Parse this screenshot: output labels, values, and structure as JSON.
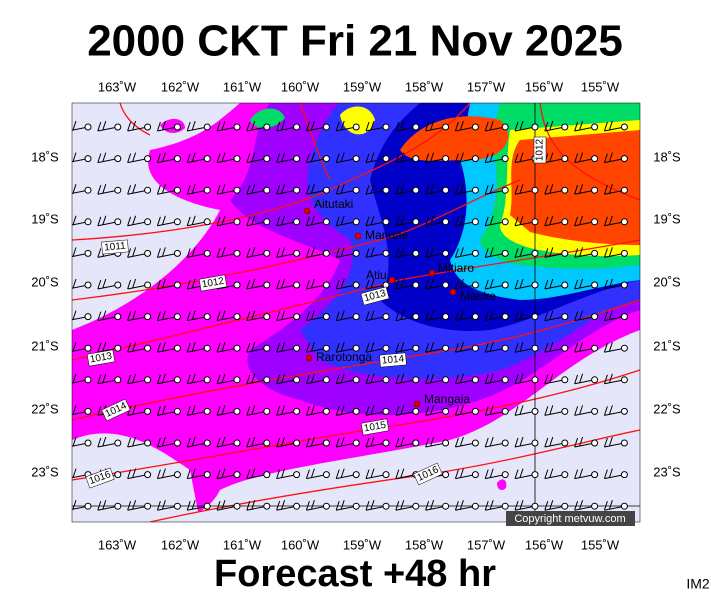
{
  "header": {
    "title": "2000 CKT Fri 21 Nov 2025"
  },
  "map": {
    "longitudes": [
      "163˚W",
      "162˚W",
      "161˚W",
      "160˚W",
      "159˚W",
      "158˚W",
      "157˚W",
      "156˚W",
      "155˚W"
    ],
    "latitudes": [
      "18˚S",
      "19˚S",
      "20˚S",
      "21˚S",
      "22˚S",
      "23˚S"
    ],
    "places": [
      "Aitutaki",
      "Manuae",
      "Atiu",
      "Mitiaro",
      "Mauke",
      "Rarotonga",
      "Mangaia"
    ],
    "isobars": [
      "1011",
      "1012",
      "1013",
      "1013",
      "1014",
      "1014",
      "1015",
      "1016",
      "1016",
      "1012"
    ],
    "copyright": "Copyright metvuw.com"
  },
  "footer": {
    "forecast": "Forecast +48 hr",
    "image_id": "IM2"
  }
}
